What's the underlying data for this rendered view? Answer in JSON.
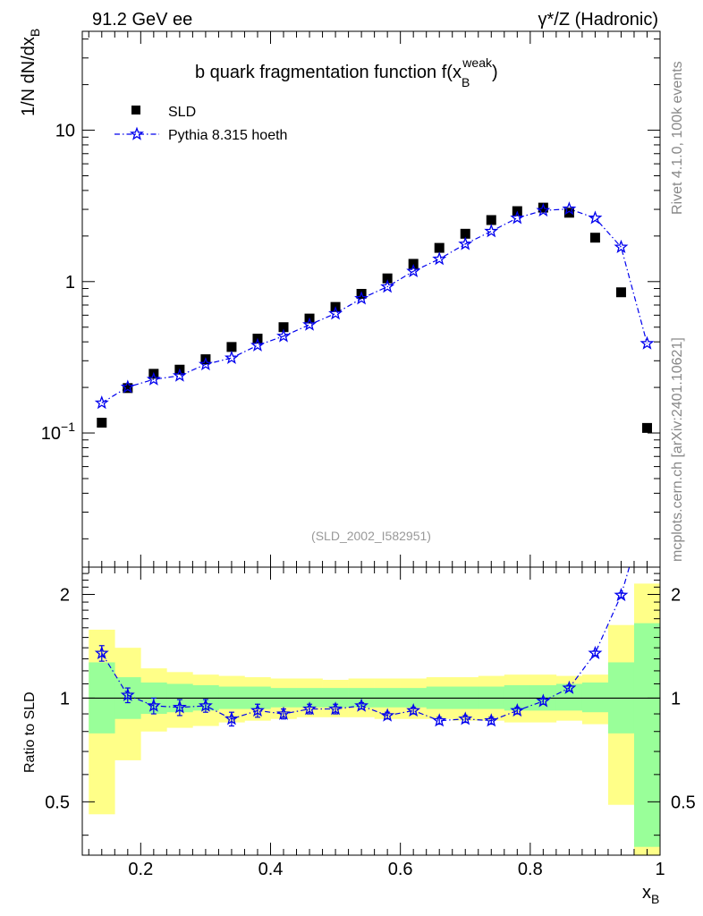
{
  "header": {
    "energy_label": "91.2 GeV ee",
    "process_label": "γ*/Z (Hadronic)"
  },
  "side_labels": {
    "rivet": "Rivet 4.1.0,  100k events",
    "source": "mcplots.cern.ch [arXiv:2401.10621]"
  },
  "chart_data": [
    {
      "type": "scatter",
      "title": "b quark fragmentation function f(x_B^weak)",
      "title_parts": {
        "main": "b quark fragmentation function f(x",
        "sup": "weak",
        "sub": "B",
        "close": ")"
      },
      "ylabel": {
        "main": "1/N  dN/dx",
        "sub": "B"
      },
      "yscale": "log",
      "xlim": [
        0.11,
        1.0
      ],
      "ylim": [
        0.013,
        45
      ],
      "yticks": [
        {
          "value": 10,
          "label": "10"
        },
        {
          "value": 1,
          "label": "1"
        },
        {
          "value": 0.1,
          "label": "10",
          "exp": "−1"
        }
      ],
      "analysis_id": "(SLD_2002_I582951)",
      "legend_position": "top-left",
      "series": [
        {
          "name": "SLD",
          "style": "marker-square",
          "color": "#000000",
          "x": [
            0.14,
            0.18,
            0.22,
            0.26,
            0.3,
            0.34,
            0.38,
            0.42,
            0.46,
            0.5,
            0.54,
            0.58,
            0.62,
            0.66,
            0.7,
            0.74,
            0.78,
            0.82,
            0.86,
            0.9,
            0.94,
            0.98
          ],
          "y": [
            0.117,
            0.198,
            0.246,
            0.262,
            0.307,
            0.37,
            0.42,
            0.5,
            0.57,
            0.68,
            0.83,
            1.05,
            1.31,
            1.67,
            2.07,
            2.55,
            2.92,
            3.08,
            2.85,
            1.95,
            0.85,
            0.108
          ]
        },
        {
          "name": "Pythia 8.315 hoeth",
          "style": "dash-dot-star",
          "color": "#0000ee",
          "x": [
            0.14,
            0.18,
            0.22,
            0.26,
            0.3,
            0.34,
            0.38,
            0.42,
            0.46,
            0.5,
            0.54,
            0.58,
            0.62,
            0.66,
            0.7,
            0.74,
            0.78,
            0.82,
            0.86,
            0.9,
            0.94,
            0.98
          ],
          "y": [
            0.158,
            0.201,
            0.226,
            0.239,
            0.284,
            0.313,
            0.379,
            0.436,
            0.519,
            0.615,
            0.773,
            0.925,
            1.17,
            1.41,
            1.77,
            2.15,
            2.63,
            2.95,
            3.02,
            2.63,
            1.69,
            0.39
          ]
        }
      ]
    },
    {
      "type": "scatter",
      "title": "",
      "ylabel": "Ratio to SLD",
      "xlabel": {
        "main": "x",
        "sub": "B"
      },
      "xlim": [
        0.11,
        1.0
      ],
      "ylim": [
        0.35,
        2.4
      ],
      "xticks": [
        0.2,
        0.4,
        0.6,
        0.8,
        1
      ],
      "xtick_labels": [
        "0.2",
        "0.4",
        "0.6",
        "0.8",
        "1"
      ],
      "yticks": [
        0.5,
        1,
        2
      ],
      "ytick_labels": [
        "0.5",
        "1",
        "2"
      ],
      "reference_line": 1,
      "bin_edges": [
        0.12,
        0.16,
        0.2,
        0.24,
        0.28,
        0.32,
        0.36,
        0.4,
        0.44,
        0.48,
        0.52,
        0.56,
        0.6,
        0.64,
        0.68,
        0.72,
        0.76,
        0.8,
        0.84,
        0.88,
        0.92,
        0.96,
        1.0
      ],
      "bands": [
        {
          "name": "total uncertainty",
          "color": "#ffff88",
          "low": [
            0.46,
            0.66,
            0.8,
            0.82,
            0.83,
            0.85,
            0.86,
            0.87,
            0.88,
            0.88,
            0.88,
            0.87,
            0.87,
            0.87,
            0.86,
            0.86,
            0.85,
            0.85,
            0.86,
            0.84,
            0.49,
            0.33
          ],
          "high": [
            1.58,
            1.4,
            1.22,
            1.19,
            1.17,
            1.16,
            1.15,
            1.14,
            1.14,
            1.13,
            1.14,
            1.14,
            1.14,
            1.15,
            1.15,
            1.16,
            1.17,
            1.17,
            1.16,
            1.17,
            1.63,
            2.15
          ]
        },
        {
          "name": "statistical uncertainty",
          "color": "#99ff99",
          "low": [
            0.79,
            0.87,
            0.9,
            0.91,
            0.92,
            0.93,
            0.93,
            0.94,
            0.94,
            0.94,
            0.94,
            0.94,
            0.94,
            0.93,
            0.93,
            0.93,
            0.92,
            0.92,
            0.92,
            0.91,
            0.79,
            0.37
          ],
          "high": [
            1.27,
            1.15,
            1.11,
            1.1,
            1.09,
            1.08,
            1.08,
            1.07,
            1.07,
            1.07,
            1.07,
            1.07,
            1.07,
            1.08,
            1.08,
            1.08,
            1.09,
            1.09,
            1.1,
            1.11,
            1.27,
            1.65
          ]
        }
      ],
      "series": [
        {
          "name": "Pythia 8.315 hoeth / SLD",
          "style": "dash-dot-star",
          "color": "#0000ee",
          "x": [
            0.14,
            0.18,
            0.22,
            0.26,
            0.3,
            0.34,
            0.38,
            0.42,
            0.46,
            0.5,
            0.54,
            0.58,
            0.62,
            0.66,
            0.7,
            0.74,
            0.78,
            0.82,
            0.86,
            0.9,
            0.94
          ],
          "y": [
            1.35,
            1.02,
            0.95,
            0.94,
            0.95,
            0.87,
            0.92,
            0.9,
            0.93,
            0.93,
            0.95,
            0.89,
            0.92,
            0.86,
            0.87,
            0.86,
            0.92,
            0.98,
            1.07,
            1.35,
            1.99
          ],
          "yerr": [
            0.07,
            0.05,
            0.05,
            0.05,
            0.04,
            0.04,
            0.04,
            0.03,
            0.03,
            0.03,
            0.02,
            0.02,
            0.02,
            0.02,
            0.02,
            0.02,
            0.02,
            0.02,
            0.02,
            0.02,
            0.03
          ],
          "beyond_range_x": 0.98,
          "beyond_range_y": 3.6
        }
      ]
    }
  ]
}
